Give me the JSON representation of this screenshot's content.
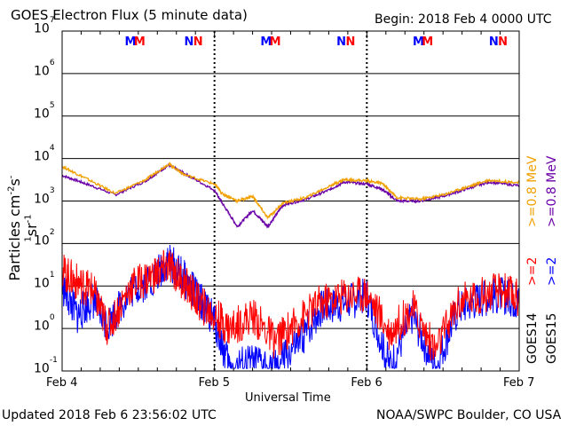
{
  "header": {
    "title": "GOES Electron Flux (5 minute data)",
    "begin": "Begin: 2018 Feb 4 0000 UTC"
  },
  "footer": {
    "updated": "Updated 2018 Feb  6 23:56:02 UTC",
    "credit": "NOAA/SWPC Boulder, CO USA"
  },
  "markers": {
    "m": "M",
    "n": "N",
    "groups": [
      {
        "day": 0,
        "m_blue_frac": 0.44,
        "m_red_frac": 0.5,
        "n_blue_frac": 0.83,
        "n_red_frac": 0.89
      },
      {
        "day": 1,
        "m_blue_frac": 0.33,
        "m_red_frac": 0.39,
        "n_blue_frac": 0.83,
        "n_red_frac": 0.89
      },
      {
        "day": 2,
        "m_blue_frac": 0.33,
        "m_red_frac": 0.39,
        "n_blue_frac": 0.83,
        "n_red_frac": 0.89
      }
    ],
    "m_label_note": ""
  },
  "legend": {
    "goes14": "GOES14",
    "goes15": "GOES15",
    "ge2_14": ">=2",
    "ge2_15": ">=2",
    "ge08_14": ">=0.8  MeV",
    "ge08_15": ">=0.8  MeV"
  },
  "colors": {
    "goes14_ge2": "#ff0000",
    "goes15_ge2": "#0000ff",
    "goes14_ge08": "#f0a000",
    "goes15_ge08": "#6a00a8",
    "threshold": "#000000"
  },
  "chart_data": {
    "type": "line",
    "title": "GOES Electron Flux (5 minute data)",
    "xlabel": "Universal Time",
    "ylabel": "Particles cm-2s-1sr-1",
    "ylabel_parts": {
      "base": "Particles cm",
      "e1": "-2",
      "s": "s",
      "e2": "-1",
      "sr": "sr",
      "e3": "-1"
    },
    "yscale": "log",
    "ylim": [
      0.1,
      10000000
    ],
    "y_ticks": [
      {
        "base": "10",
        "exp": "7"
      },
      {
        "base": "10",
        "exp": "6"
      },
      {
        "base": "10",
        "exp": "5"
      },
      {
        "base": "10",
        "exp": "4"
      },
      {
        "base": "10",
        "exp": "3"
      },
      {
        "base": "10",
        "exp": "2"
      },
      {
        "base": "10",
        "exp": "1"
      },
      {
        "base": "10",
        "exp": "0"
      },
      {
        "base": "10",
        "exp": "-1"
      }
    ],
    "x_ticks": [
      "Feb 4",
      "Feb 5",
      "Feb 6",
      "Feb 7"
    ],
    "xlim_days": [
      0,
      3
    ],
    "threshold": {
      "value": 1000,
      "style": "dashed"
    },
    "grid": true,
    "series": [
      {
        "name": "GOES15 >=0.8 MeV",
        "color_key": "goes15_ge08",
        "x": [
          0.0,
          0.15,
          0.35,
          0.55,
          0.7,
          0.8,
          1.0,
          1.05,
          1.15,
          1.25,
          1.35,
          1.45,
          1.6,
          1.75,
          1.85,
          2.0,
          2.1,
          2.2,
          2.35,
          2.5,
          2.65,
          2.8,
          3.0
        ],
        "y": [
          4000,
          2600,
          1400,
          3000,
          7000,
          4500,
          1800,
          900,
          250,
          600,
          250,
          800,
          1100,
          1800,
          2800,
          2500,
          1900,
          1000,
          1000,
          1300,
          1900,
          2800,
          2300
        ]
      },
      {
        "name": "GOES14 >=0.8 MeV",
        "color_key": "goes14_ge08",
        "x": [
          0.0,
          0.15,
          0.35,
          0.55,
          0.7,
          0.8,
          1.0,
          1.05,
          1.15,
          1.25,
          1.35,
          1.45,
          1.6,
          1.75,
          1.85,
          2.0,
          2.1,
          2.2,
          2.35,
          2.5,
          2.65,
          2.8,
          3.0
        ],
        "y": [
          6500,
          3500,
          1500,
          3200,
          7500,
          4200,
          2500,
          1500,
          1000,
          1300,
          400,
          900,
          1200,
          2200,
          3200,
          3000,
          2600,
          1200,
          1100,
          1400,
          2100,
          3100,
          2700
        ]
      },
      {
        "name": "GOES15 >=2 MeV",
        "color_key": "goes15_ge2",
        "x": [
          0.0,
          0.1,
          0.2,
          0.3,
          0.45,
          0.6,
          0.7,
          0.8,
          0.9,
          1.0,
          1.1,
          1.25,
          1.4,
          1.55,
          1.7,
          1.85,
          2.0,
          2.15,
          2.3,
          2.45,
          2.6,
          2.75,
          2.9,
          3.0
        ],
        "y": [
          10,
          2,
          5,
          1.2,
          8,
          15,
          40,
          15,
          5,
          1.5,
          0.12,
          0.15,
          0.12,
          0.4,
          3,
          4,
          6,
          0.12,
          2,
          0.12,
          3,
          5,
          6,
          4
        ]
      },
      {
        "name": "GOES14 >=2 MeV",
        "color_key": "goes14_ge2",
        "x": [
          0.0,
          0.1,
          0.2,
          0.3,
          0.45,
          0.6,
          0.7,
          0.8,
          0.9,
          1.0,
          1.1,
          1.25,
          1.4,
          1.55,
          1.7,
          1.85,
          2.0,
          2.15,
          2.3,
          2.45,
          2.6,
          2.75,
          2.9,
          3.0
        ],
        "y": [
          22,
          12,
          8,
          1.0,
          10,
          18,
          30,
          12,
          4,
          2,
          1.0,
          2,
          0.5,
          1.5,
          4,
          6,
          7,
          0.8,
          3,
          0.3,
          4,
          6,
          8,
          5
        ]
      }
    ]
  }
}
